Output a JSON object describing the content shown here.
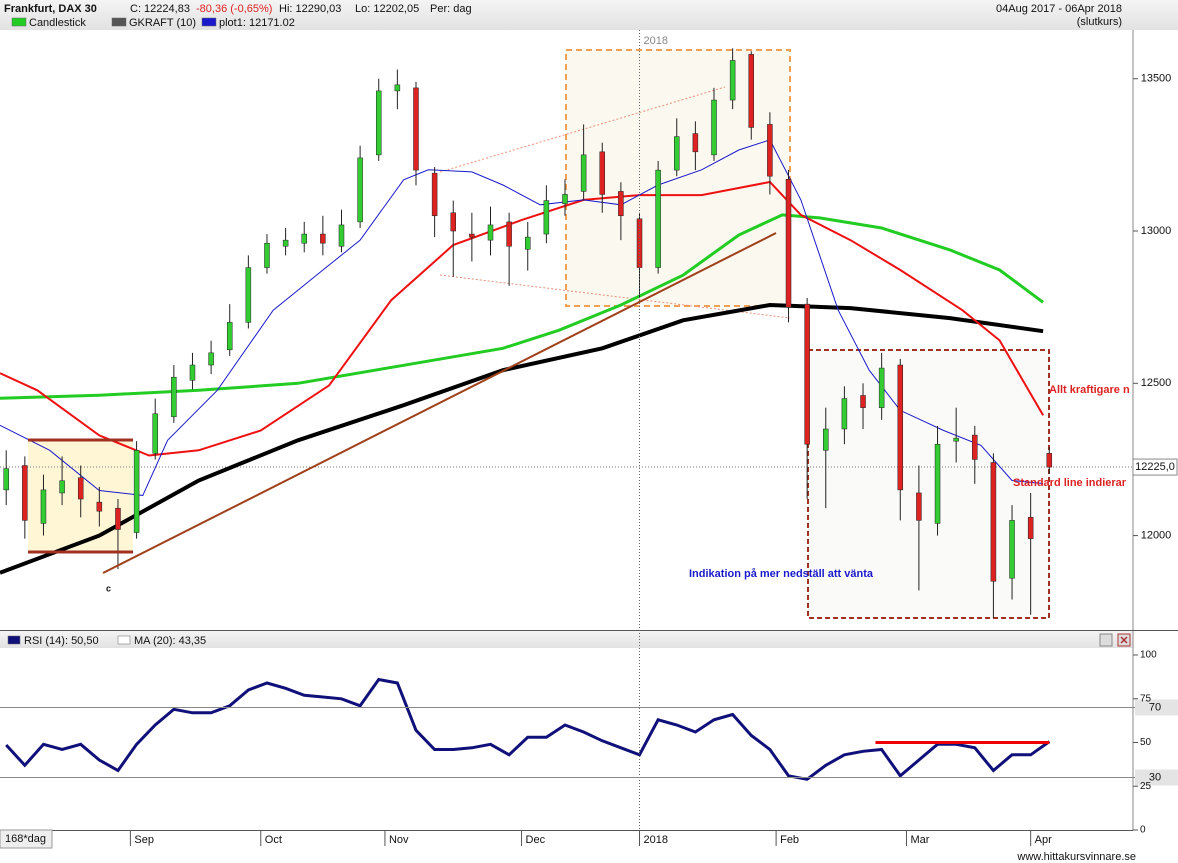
{
  "chart_data": [
    {
      "type": "candlestick",
      "title": "Frankfurt, DAX 30",
      "close_label": "C: 12224,83",
      "change_label": "-80,36 (-0,65%)",
      "high_label": "Hi: 12290,03",
      "low_label": "Lo: 12202,05",
      "period_label": "Per: dag",
      "date_range": "04Aug 2017 - 06Apr 2018",
      "price_type": "(slutkurs)",
      "legend": [
        {
          "name": "Candlestick",
          "color": "#22cc22"
        },
        {
          "name": "GKRAFT (10)",
          "color": "#555555"
        },
        {
          "name": "plot1: 12171.02",
          "color": "#1a1acc"
        }
      ],
      "xlim": [
        -1,
        181
      ],
      "ylim": [
        11690,
        13660
      ],
      "yticks": [
        12000,
        12500,
        13000,
        13500
      ],
      "year_divider": {
        "value": 102,
        "label": "2018"
      },
      "last_price": {
        "value": 12225,
        "label": "12225,0"
      },
      "candles": {
        "up_color": "#33cc33",
        "down_color": "#dd2222",
        "x": [
          0,
          3,
          6,
          9,
          12,
          15,
          18,
          21,
          24,
          27,
          30,
          33,
          36,
          39,
          42,
          45,
          48,
          51,
          54,
          57,
          60,
          63,
          66,
          69,
          72,
          75,
          78,
          81,
          84,
          87,
          90,
          93,
          96,
          99,
          102,
          105,
          108,
          111,
          114,
          117,
          120,
          123,
          126,
          129,
          132,
          135,
          138,
          141,
          144,
          147,
          150,
          153,
          156,
          159,
          162,
          165,
          168
        ],
        "open": [
          12150,
          12230,
          12040,
          12140,
          12190,
          12110,
          12090,
          12010,
          12270,
          12390,
          12510,
          12560,
          12610,
          12700,
          12880,
          12950,
          12960,
          12990,
          12950,
          13030,
          13250,
          13460,
          13470,
          13190,
          13060,
          12990,
          12970,
          13030,
          12940,
          12990,
          13090,
          13130,
          13260,
          13130,
          13040,
          12880,
          13200,
          13320,
          13250,
          13430,
          13580,
          13350,
          13170,
          12760,
          12280,
          12350,
          12460,
          12420,
          12560,
          12140,
          12040,
          12310,
          12330,
          12240,
          11860,
          12060,
          12270
        ],
        "high": [
          12280,
          12260,
          12200,
          12260,
          12230,
          12160,
          12120,
          12310,
          12450,
          12560,
          12600,
          12640,
          12760,
          12920,
          12990,
          13010,
          13030,
          13050,
          13070,
          13280,
          13500,
          13530,
          13490,
          13210,
          13100,
          13060,
          13080,
          13060,
          13030,
          13150,
          13170,
          13350,
          13290,
          13160,
          13060,
          13230,
          13370,
          13360,
          13470,
          13600,
          13590,
          13390,
          13200,
          12780,
          12420,
          12490,
          12500,
          12600,
          12580,
          12230,
          12360,
          12420,
          12360,
          12270,
          12100,
          12140,
          12290.03
        ],
        "low": [
          12100,
          11990,
          12000,
          12100,
          12060,
          12030,
          11890,
          11990,
          12250,
          12370,
          12480,
          12530,
          12590,
          12680,
          12860,
          12920,
          12930,
          12920,
          12930,
          13010,
          13230,
          13400,
          13150,
          12980,
          12850,
          12900,
          12920,
          12820,
          12870,
          12960,
          13050,
          13100,
          13060,
          12970,
          12780,
          12860,
          13180,
          13200,
          13230,
          13400,
          13300,
          13120,
          12700,
          12120,
          12090,
          12300,
          12350,
          12380,
          12050,
          11820,
          12000,
          12240,
          12170,
          11730,
          11790,
          11740,
          12202.05
        ],
        "close": [
          12220,
          12050,
          12150,
          12180,
          12120,
          12080,
          12020,
          12280,
          12400,
          12520,
          12560,
          12600,
          12700,
          12880,
          12960,
          12970,
          12990,
          12960,
          13020,
          13240,
          13460,
          13480,
          13200,
          13050,
          13000,
          12980,
          13020,
          12950,
          12980,
          13100,
          13120,
          13250,
          13120,
          13050,
          12880,
          13200,
          13310,
          13260,
          13430,
          13560,
          13340,
          13180,
          12750,
          12300,
          12350,
          12450,
          12420,
          12550,
          12150,
          12050,
          12300,
          12320,
          12250,
          11850,
          12050,
          11990,
          12224.83
        ]
      },
      "lines": [
        {
          "color": "#000000",
          "x": [
            -1,
            15,
            31,
            47,
            64,
            80,
            96,
            109,
            123,
            136,
            152,
            167
          ],
          "values": [
            11878,
            12000,
            12181,
            12313,
            12428,
            12543,
            12615,
            12707,
            12757,
            12747,
            12714,
            12671
          ]
        },
        {
          "color": "#22cc22",
          "x": [
            -1,
            15,
            31,
            47,
            64,
            80,
            89,
            99,
            109,
            118,
            125,
            131,
            141,
            152,
            160,
            167
          ],
          "values": [
            12451,
            12461,
            12477,
            12500,
            12559,
            12615,
            12674,
            12757,
            12855,
            12987,
            13053,
            13043,
            13010,
            12938,
            12872,
            12766
          ]
        },
        {
          "color": "#ee1111",
          "x": [
            -1,
            5,
            15,
            23,
            31,
            41,
            52,
            62,
            72,
            83,
            93,
            102,
            112,
            123,
            128,
            136,
            144,
            154,
            160,
            167
          ],
          "values": [
            12533,
            12477,
            12329,
            12263,
            12280,
            12345,
            12493,
            12773,
            12954,
            13036,
            13102,
            13118,
            13118,
            13161,
            13053,
            12970,
            12872,
            12740,
            12641,
            12395
          ]
        },
        {
          "color": "#1a1acc",
          "x": [
            -1,
            7,
            15,
            22,
            26,
            34,
            43,
            51,
            57,
            64,
            68,
            75,
            80,
            86,
            93,
            99,
            105,
            112,
            118,
            123,
            128,
            134,
            139,
            144,
            151,
            157,
            162,
            167
          ],
          "values": [
            12362,
            12280,
            12148,
            12132,
            12313,
            12477,
            12740,
            12872,
            12970,
            13168,
            13201,
            13194,
            13151,
            13086,
            13102,
            13086,
            13151,
            13201,
            13266,
            13299,
            13102,
            12740,
            12543,
            12411,
            12345,
            12296,
            12181,
            12171.02
          ]
        }
      ],
      "annotations": [
        {
          "text": "Allt kraftigare n",
          "color": "#dd2222"
        },
        {
          "text": "Standard line indierar",
          "color": "#dd2222"
        },
        {
          "text": "Indikation på mer nedställ att vänta",
          "color": "#1a1acc"
        },
        {
          "text": "c",
          "color": "#111111"
        }
      ]
    },
    {
      "type": "line",
      "legend": [
        {
          "name": "RSI (14): 50,50",
          "color": "#10107a"
        },
        {
          "name": "MA (20): 43,35",
          "color": "#ffffff"
        }
      ],
      "xlim": [
        -1,
        181
      ],
      "ylim": [
        0,
        100
      ],
      "yticks": [
        0,
        25,
        50,
        75,
        100
      ],
      "levels": [
        30,
        70
      ],
      "xticks": [
        {
          "value": 20,
          "label": "Sep"
        },
        {
          "value": 41,
          "label": "Oct"
        },
        {
          "value": 61,
          "label": "Nov"
        },
        {
          "value": 83,
          "label": "Dec"
        },
        {
          "value": 102,
          "label": "2018"
        },
        {
          "value": 124,
          "label": "Feb"
        },
        {
          "value": 145,
          "label": "Mar"
        },
        {
          "value": 165,
          "label": "Apr"
        }
      ],
      "period_label": "168*dag",
      "series": [
        {
          "color": "#10107a",
          "x": [
            0,
            3,
            6,
            9,
            12,
            15,
            18,
            21,
            24,
            27,
            30,
            33,
            36,
            39,
            42,
            45,
            48,
            51,
            54,
            57,
            60,
            63,
            66,
            69,
            72,
            75,
            78,
            81,
            84,
            87,
            90,
            93,
            96,
            99,
            102,
            105,
            108,
            111,
            114,
            117,
            120,
            123,
            126,
            129,
            132,
            135,
            138,
            141,
            144,
            147,
            150,
            153,
            156,
            159,
            162,
            165,
            168
          ],
          "values": [
            48.6,
            37,
            49,
            46,
            49,
            40,
            34,
            49,
            60,
            69,
            67,
            67,
            71,
            80,
            84,
            81,
            77,
            76,
            75,
            71,
            86,
            84,
            57,
            46,
            46,
            47,
            49,
            43,
            53,
            53,
            60,
            56,
            51,
            47,
            43,
            63,
            60,
            56,
            63,
            66,
            54,
            46,
            31,
            29,
            37,
            43,
            45,
            46,
            31,
            40,
            49,
            49,
            47,
            34,
            43,
            43,
            50.5
          ]
        }
      ],
      "signal_line": {
        "color": "#ee0000",
        "value": 50,
        "x": [
          140,
          168
        ]
      },
      "source": "www.hittakursvinnare.se"
    }
  ]
}
